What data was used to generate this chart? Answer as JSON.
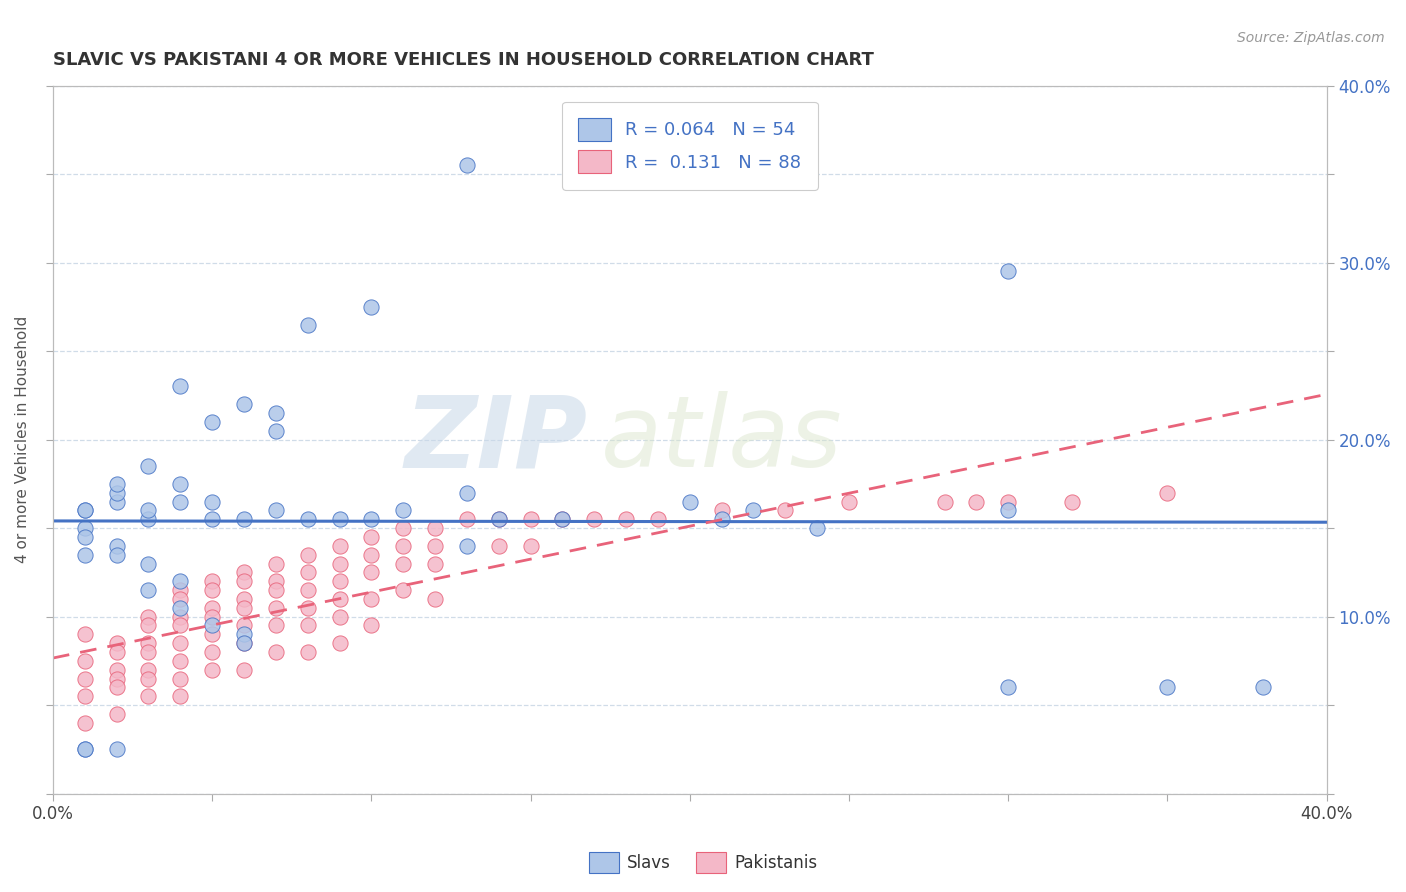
{
  "title": "SLAVIC VS PAKISTANI 4 OR MORE VEHICLES IN HOUSEHOLD CORRELATION CHART",
  "source": "Source: ZipAtlas.com",
  "ylabel": "4 or more Vehicles in Household",
  "xlim": [
    0.0,
    0.4
  ],
  "ylim": [
    0.0,
    0.4
  ],
  "watermark_zip": "ZIP",
  "watermark_atlas": "atlas",
  "slavs_R": 0.064,
  "slavs_N": 54,
  "pakistanis_R": 0.131,
  "pakistanis_N": 88,
  "slavs_color": "#aec6e8",
  "pakistanis_color": "#f4b8c8",
  "slavs_edge_color": "#4472c4",
  "pakistanis_edge_color": "#e8637a",
  "slavs_line_color": "#4472c4",
  "pakistanis_line_color": "#e8637a",
  "grid_color": "#d0dce8",
  "background_color": "#ffffff",
  "slavs_x": [
    0.13,
    0.3,
    0.08,
    0.1,
    0.06,
    0.04,
    0.05,
    0.07,
    0.07,
    0.03,
    0.02,
    0.01,
    0.01,
    0.02,
    0.03,
    0.03,
    0.02,
    0.01,
    0.01,
    0.01,
    0.02,
    0.04,
    0.04,
    0.05,
    0.05,
    0.06,
    0.07,
    0.08,
    0.09,
    0.1,
    0.11,
    0.13,
    0.13,
    0.14,
    0.16,
    0.2,
    0.21,
    0.22,
    0.24,
    0.3,
    0.3,
    0.35,
    0.38,
    0.02,
    0.03,
    0.03,
    0.04,
    0.04,
    0.05,
    0.06,
    0.06,
    0.02,
    0.01,
    0.01
  ],
  "slavs_y": [
    0.355,
    0.295,
    0.265,
    0.275,
    0.22,
    0.23,
    0.21,
    0.215,
    0.205,
    0.185,
    0.165,
    0.16,
    0.135,
    0.14,
    0.155,
    0.16,
    0.17,
    0.15,
    0.145,
    0.16,
    0.175,
    0.175,
    0.165,
    0.165,
    0.155,
    0.155,
    0.16,
    0.155,
    0.155,
    0.155,
    0.16,
    0.17,
    0.14,
    0.155,
    0.155,
    0.165,
    0.155,
    0.16,
    0.15,
    0.16,
    0.06,
    0.06,
    0.06,
    0.135,
    0.13,
    0.115,
    0.12,
    0.105,
    0.095,
    0.09,
    0.085,
    0.025,
    0.025,
    0.025
  ],
  "pakistanis_x": [
    0.01,
    0.01,
    0.01,
    0.01,
    0.01,
    0.02,
    0.02,
    0.02,
    0.02,
    0.02,
    0.02,
    0.03,
    0.03,
    0.03,
    0.03,
    0.03,
    0.03,
    0.03,
    0.04,
    0.04,
    0.04,
    0.04,
    0.04,
    0.04,
    0.04,
    0.04,
    0.05,
    0.05,
    0.05,
    0.05,
    0.05,
    0.05,
    0.05,
    0.06,
    0.06,
    0.06,
    0.06,
    0.06,
    0.06,
    0.06,
    0.07,
    0.07,
    0.07,
    0.07,
    0.07,
    0.07,
    0.08,
    0.08,
    0.08,
    0.08,
    0.08,
    0.08,
    0.09,
    0.09,
    0.09,
    0.09,
    0.09,
    0.09,
    0.1,
    0.1,
    0.1,
    0.1,
    0.1,
    0.11,
    0.11,
    0.11,
    0.11,
    0.12,
    0.12,
    0.12,
    0.12,
    0.13,
    0.14,
    0.14,
    0.15,
    0.15,
    0.16,
    0.17,
    0.18,
    0.19,
    0.21,
    0.23,
    0.25,
    0.28,
    0.29,
    0.3,
    0.32,
    0.35
  ],
  "pakistanis_y": [
    0.09,
    0.075,
    0.065,
    0.055,
    0.04,
    0.085,
    0.08,
    0.07,
    0.065,
    0.06,
    0.045,
    0.1,
    0.095,
    0.085,
    0.08,
    0.07,
    0.065,
    0.055,
    0.115,
    0.11,
    0.1,
    0.095,
    0.085,
    0.075,
    0.065,
    0.055,
    0.12,
    0.115,
    0.105,
    0.1,
    0.09,
    0.08,
    0.07,
    0.125,
    0.12,
    0.11,
    0.105,
    0.095,
    0.085,
    0.07,
    0.13,
    0.12,
    0.115,
    0.105,
    0.095,
    0.08,
    0.135,
    0.125,
    0.115,
    0.105,
    0.095,
    0.08,
    0.14,
    0.13,
    0.12,
    0.11,
    0.1,
    0.085,
    0.145,
    0.135,
    0.125,
    0.11,
    0.095,
    0.15,
    0.14,
    0.13,
    0.115,
    0.15,
    0.14,
    0.13,
    0.11,
    0.155,
    0.155,
    0.14,
    0.155,
    0.14,
    0.155,
    0.155,
    0.155,
    0.155,
    0.16,
    0.16,
    0.165,
    0.165,
    0.165,
    0.165,
    0.165,
    0.17
  ]
}
